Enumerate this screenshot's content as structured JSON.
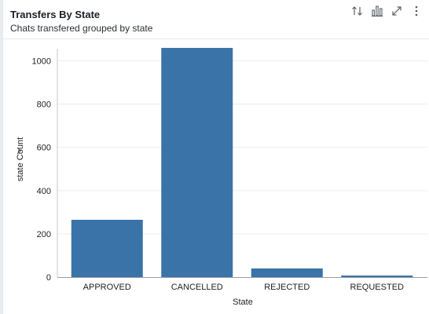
{
  "header": {
    "title": "Transfers By State",
    "subtitle": "Chats transfered grouped by state"
  },
  "toolbar": {
    "items": [
      {
        "icon": "sort-arrows-icon"
      },
      {
        "icon": "bar-chart-icon"
      },
      {
        "icon": "expand-icon"
      },
      {
        "icon": "more-vertical-icon"
      }
    ]
  },
  "colors": {
    "bar": "#3a73a8",
    "grid": "#ebedef",
    "axis": "#333333",
    "icon": "#5a6066"
  },
  "chart_data": {
    "type": "bar",
    "title": "",
    "xlabel": "State",
    "ylabel": "state Count",
    "ylabel_icon": "chevron-down-icon",
    "categories": [
      "APPROVED",
      "CANCELLED",
      "REJECTED",
      "REQUESTED"
    ],
    "values": [
      265,
      1060,
      40,
      6
    ],
    "ylim": [
      0,
      1100
    ],
    "yticks": [
      0,
      200,
      400,
      600,
      800,
      1000
    ],
    "grid": true,
    "legend": "none"
  }
}
